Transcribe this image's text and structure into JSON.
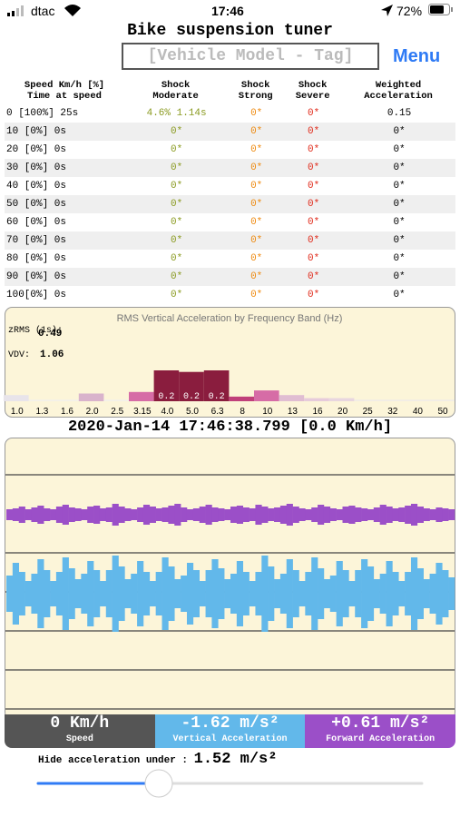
{
  "status_bar": {
    "carrier": "dtac",
    "time": "17:46",
    "battery": "72%"
  },
  "header": {
    "title": "Bike suspension tuner",
    "model_input": "[Vehicle Model - Tag]",
    "menu": "Menu"
  },
  "table": {
    "headers": [
      [
        "Speed Km/h [%]",
        "Time at speed"
      ],
      [
        "Shock",
        "Moderate"
      ],
      [
        "Shock",
        "Strong"
      ],
      [
        "Shock",
        "Severe"
      ],
      [
        "Weighted",
        "Acceleration"
      ]
    ],
    "rows": [
      [
        "0 [100%] 25s",
        "4.6% 1.14s",
        "0*",
        "0*",
        "0.15"
      ],
      [
        "10 [0%] 0s",
        "0*",
        "0*",
        "0*",
        "0*"
      ],
      [
        "20 [0%] 0s",
        "0*",
        "0*",
        "0*",
        "0*"
      ],
      [
        "30 [0%] 0s",
        "0*",
        "0*",
        "0*",
        "0*"
      ],
      [
        "40 [0%] 0s",
        "0*",
        "0*",
        "0*",
        "0*"
      ],
      [
        "50 [0%] 0s",
        "0*",
        "0*",
        "0*",
        "0*"
      ],
      [
        "60 [0%] 0s",
        "0*",
        "0*",
        "0*",
        "0*"
      ],
      [
        "70 [0%] 0s",
        "0*",
        "0*",
        "0*",
        "0*"
      ],
      [
        "80 [0%] 0s",
        "0*",
        "0*",
        "0*",
        "0*"
      ],
      [
        "90 [0%] 0s",
        "0*",
        "0*",
        "0*",
        "0*"
      ],
      [
        "100[0%] 0s",
        "0*",
        "0*",
        "0*",
        "0*"
      ]
    ]
  },
  "chart_data": [
    {
      "type": "bar",
      "title": "RMS Vertical Acceleration by Frequency Band (Hz)",
      "stats": [
        {
          "label": "zRMS (1s):",
          "value": "0.49"
        },
        {
          "label": "VDV:",
          "value": "1.06"
        }
      ],
      "categories": [
        "1.0",
        "1.3",
        "1.6",
        "2.0",
        "2.5",
        "3.15",
        "4.0",
        "5.0",
        "6.3",
        "8",
        "10",
        "13",
        "16",
        "20",
        "25",
        "32",
        "40",
        "50"
      ],
      "values": [
        0.04,
        0.01,
        0.01,
        0.05,
        0.01,
        0.06,
        0.2,
        0.19,
        0.2,
        0.03,
        0.07,
        0.04,
        0.02,
        0.02,
        0.01,
        0.01,
        0.01,
        0.01
      ],
      "value_labels": [
        null,
        null,
        null,
        null,
        null,
        null,
        "0.2",
        "0.2",
        "0.2",
        null,
        null,
        null,
        null,
        null,
        null,
        null,
        null,
        null
      ],
      "colors": [
        "#e8e4ea",
        "#f3f0ea",
        "#f3f0ea",
        "#d9b3cc",
        "#f3f0ea",
        "#d66ca6",
        "#8a1d3e",
        "#8a1d3e",
        "#8a1d3e",
        "#c0407a",
        "#d66ca6",
        "#e0bdd2",
        "#e6cbdb",
        "#e8d6df",
        "#f1ece6",
        "#f1ece6",
        "#f1ece6",
        "#f1ece6"
      ]
    },
    {
      "type": "waveform",
      "series": [
        {
          "name": "Forward Acceleration",
          "color": "#9b4fc8",
          "values": [
            6,
            7,
            9,
            6,
            8,
            10,
            7,
            6,
            9,
            11,
            8,
            7,
            6,
            9,
            10,
            7,
            8,
            12,
            9,
            7,
            6,
            8,
            11,
            9,
            7,
            8,
            10,
            12,
            8,
            6,
            7,
            9,
            11,
            8,
            7,
            6,
            9,
            10,
            8,
            7,
            11,
            9,
            7,
            8,
            10,
            12,
            9,
            7,
            6,
            8,
            11,
            9,
            7,
            6,
            9,
            10,
            8,
            7,
            6,
            8,
            11,
            9,
            7,
            8,
            10,
            12,
            9,
            7,
            6,
            8,
            7,
            6
          ]
        },
        {
          "name": "Vertical Acceleration",
          "color": "#62b8ea",
          "values": [
            20,
            34,
            24,
            14,
            22,
            38,
            26,
            14,
            24,
            40,
            28,
            16,
            22,
            36,
            26,
            14,
            26,
            42,
            30,
            16,
            22,
            36,
            24,
            14,
            24,
            40,
            30,
            16,
            20,
            34,
            26,
            14,
            26,
            38,
            28,
            16,
            22,
            36,
            24,
            14,
            24,
            42,
            30,
            16,
            22,
            38,
            26,
            14,
            24,
            40,
            28,
            16,
            20,
            36,
            26,
            14,
            26,
            38,
            30,
            16,
            22,
            36,
            24,
            14,
            24,
            40,
            28,
            16,
            22,
            34,
            26,
            18
          ]
        }
      ]
    }
  ],
  "timestamp": "2020-Jan-14 17:46:38.799 [0.0 Km/h]",
  "readouts": [
    {
      "value": "0 Km/h",
      "label": "Speed"
    },
    {
      "value": "-1.62 m/s²",
      "label": "Vertical Acceleration"
    },
    {
      "value": "+0.61 m/s²",
      "label": "Forward Acceleration"
    }
  ],
  "threshold": {
    "label": "Hide acceleration under :",
    "value": "1.52 m/s²"
  }
}
